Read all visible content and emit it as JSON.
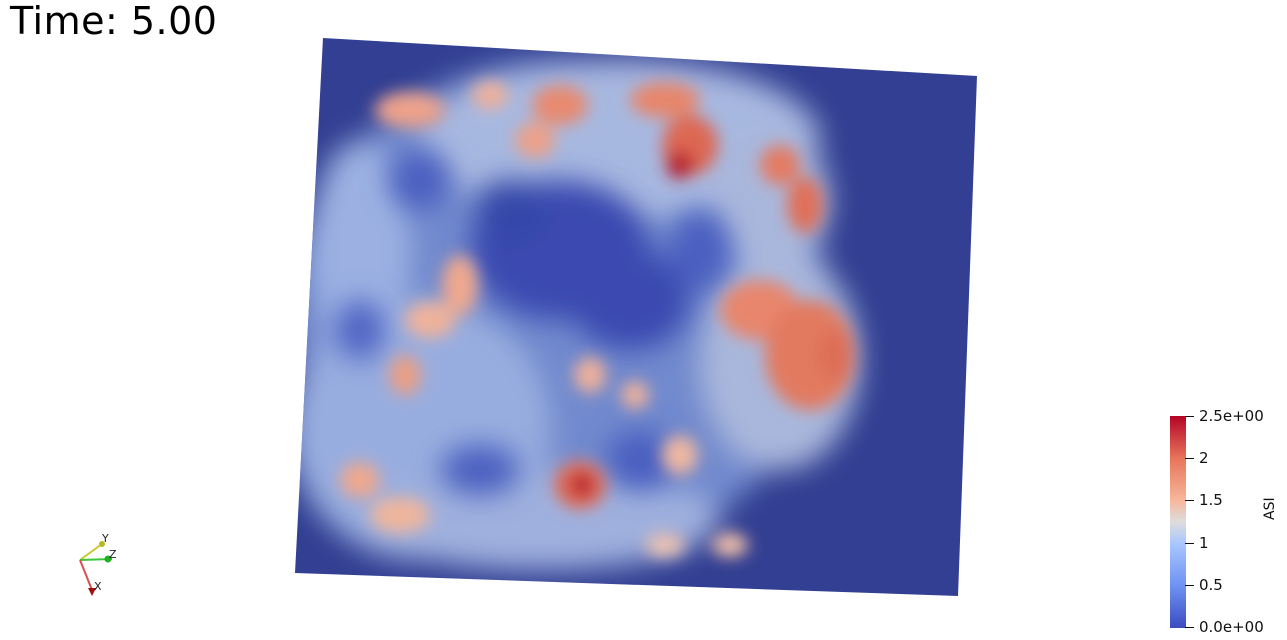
{
  "time_annotation": "Time: 5.00",
  "colorbar": {
    "title": "ASI",
    "range": [
      0.0,
      2.5
    ],
    "ticks": [
      "2.5e+00",
      "2",
      "1.5",
      "1",
      "0.5",
      "0.0e+00"
    ],
    "colors": {
      "low": "#3b4cc0",
      "mid": "#dddddd",
      "high": "#b40426"
    }
  },
  "axes_widget": {
    "labels": [
      "Y",
      "Z",
      "X"
    ]
  },
  "field_colors": {
    "background_low": "#323f92"
  }
}
